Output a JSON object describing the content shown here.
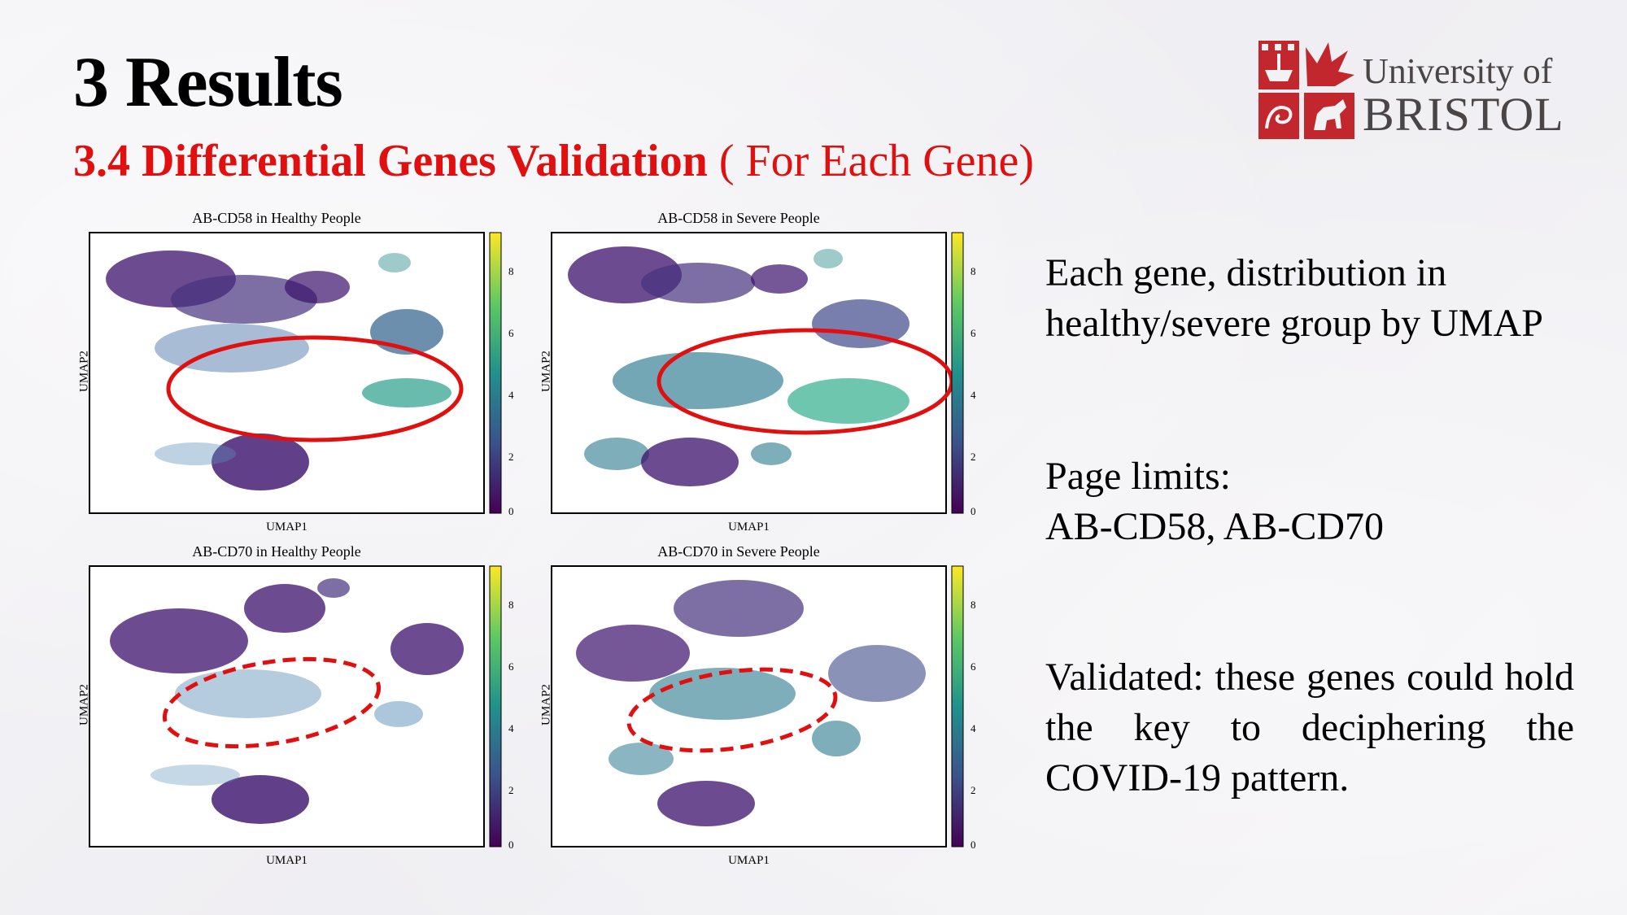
{
  "slide": {
    "title": "3 Results",
    "subtitle_bold": "3.4 Differential Genes Validation",
    "subtitle_normal": " ( For Each Gene)"
  },
  "logo": {
    "line1": "University of",
    "line2": "BRISTOL"
  },
  "side_text": {
    "p1": "Each gene, distribution in healthy/severe group by UMAP",
    "p2_line1": "Page limits:",
    "p2_line2": "AB-CD58, AB-CD70",
    "p3": "Validated: these genes could hold the key to deciphering the COVID-19 pattern."
  },
  "chart_data": [
    {
      "type": "scatter",
      "title": "AB-CD58 in Healthy People",
      "xlabel": "UMAP1",
      "ylabel": "UMAP2",
      "colorbar": {
        "ticks": [
          "0",
          "2",
          "4",
          "6",
          "8"
        ],
        "range": [
          0,
          9
        ],
        "colormap": "viridis"
      },
      "highlight": "solid-ellipse"
    },
    {
      "type": "scatter",
      "title": "AB-CD58 in Severe People",
      "xlabel": "UMAP1",
      "ylabel": "UMAP2",
      "colorbar": {
        "ticks": [
          "0",
          "2",
          "4",
          "6",
          "8"
        ],
        "range": [
          0,
          9
        ],
        "colormap": "viridis"
      },
      "highlight": "solid-ellipse"
    },
    {
      "type": "scatter",
      "title": "AB-CD70 in Healthy People",
      "xlabel": "UMAP1",
      "ylabel": "UMAP2",
      "colorbar": {
        "ticks": [
          "0",
          "2",
          "4",
          "6",
          "8"
        ],
        "range": [
          0,
          9
        ],
        "colormap": "viridis"
      },
      "highlight": "dashed-ellipse"
    },
    {
      "type": "scatter",
      "title": "AB-CD70 in Severe People",
      "xlabel": "UMAP1",
      "ylabel": "UMAP2",
      "colorbar": {
        "ticks": [
          "0",
          "2",
          "4",
          "6",
          "8"
        ],
        "range": [
          0,
          9
        ],
        "colormap": "viridis"
      },
      "highlight": "dashed-ellipse"
    }
  ],
  "colors": {
    "accent_red": "#e01010",
    "logo_red": "#c1272d",
    "logo_grey": "#4a4546",
    "viridis_low": "#440154",
    "viridis_mid": "#21918c",
    "viridis_high": "#fde725"
  }
}
